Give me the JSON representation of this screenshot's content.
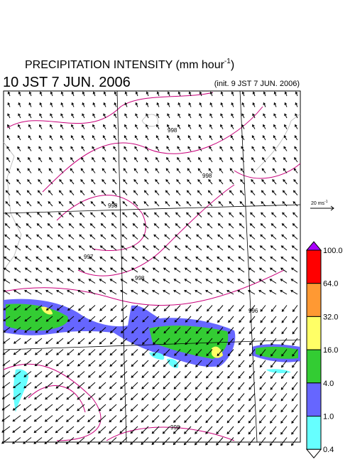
{
  "header": {
    "title": "PRECIPITATION INTENSITY (mm hour",
    "title_exponent": "-1",
    "title_close": ")",
    "valid_time": "10 JST 7 JUN. 2006",
    "init_time": "(init. 9 JST 7 JUN. 2006)"
  },
  "wind_reference": {
    "label": "20 ms",
    "exponent": "-1"
  },
  "legend": {
    "bins": [
      {
        "label": "100.0",
        "color": "#ff0000"
      },
      {
        "label": "64.0",
        "color": "#ff9933"
      },
      {
        "label": "32.0",
        "color": "#ffff66"
      },
      {
        "label": "16.0",
        "color": "#33cc33"
      },
      {
        "label": "4.0",
        "color": "#6666ff"
      },
      {
        "label": "1.0",
        "color": "#66ffff"
      },
      {
        "label": "0.4",
        "color": null
      }
    ],
    "top_color": "#aa00ff"
  },
  "contour_labels": [
    "998",
    "998",
    "998",
    "997",
    "998",
    "996",
    "998"
  ]
}
